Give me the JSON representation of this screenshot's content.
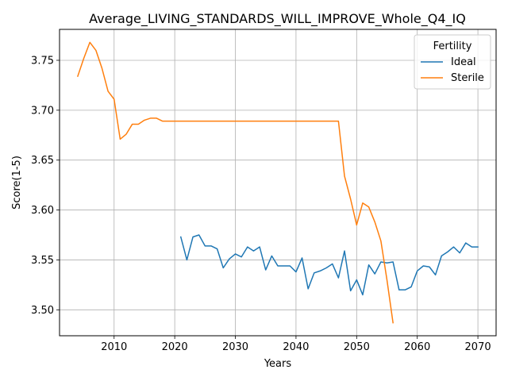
{
  "chart_data": {
    "type": "line",
    "title": "Average_LIVING_STANDARDS_WILL_IMPROVE_Whole_Q4_IQ",
    "xlabel": "Years",
    "ylabel": "Score(1-5)",
    "xlim": [
      2001,
      2073
    ],
    "ylim": [
      3.474,
      3.781
    ],
    "xticks": [
      2010,
      2020,
      2030,
      2040,
      2050,
      2060,
      2070
    ],
    "yticks": [
      3.5,
      3.55,
      3.6,
      3.65,
      3.7,
      3.75
    ],
    "xtick_labels": [
      "2010",
      "2020",
      "2030",
      "2040",
      "2050",
      "2060",
      "2070"
    ],
    "ytick_labels": [
      "3.50",
      "3.55",
      "3.60",
      "3.65",
      "3.70",
      "3.75"
    ],
    "grid": true,
    "legend": {
      "title": "Fertility",
      "placement": "top-right"
    },
    "series": [
      {
        "name": "Ideal",
        "color": "#1f77b4",
        "x": [
          2021,
          2022,
          2023,
          2024,
          2025,
          2026,
          2027,
          2028,
          2029,
          2030,
          2031,
          2032,
          2033,
          2034,
          2035,
          2036,
          2037,
          2038,
          2039,
          2040,
          2041,
          2042,
          2043,
          2044,
          2045,
          2046,
          2047,
          2048,
          2049,
          2050,
          2051,
          2052,
          2053,
          2054,
          2055,
          2056,
          2057,
          2058,
          2059,
          2060,
          2061,
          2062,
          2063,
          2064,
          2065,
          2066,
          2067,
          2068,
          2069,
          2070
        ],
        "y": [
          3.573,
          3.55,
          3.573,
          3.575,
          3.564,
          3.564,
          3.561,
          3.542,
          3.551,
          3.556,
          3.553,
          3.563,
          3.559,
          3.563,
          3.54,
          3.554,
          3.544,
          3.544,
          3.544,
          3.538,
          3.552,
          3.521,
          3.537,
          3.539,
          3.542,
          3.546,
          3.532,
          3.559,
          3.519,
          3.53,
          3.515,
          3.545,
          3.536,
          3.548,
          3.547,
          3.548,
          3.52,
          3.52,
          3.523,
          3.539,
          3.544,
          3.543,
          3.535,
          3.554,
          3.558,
          3.563,
          3.557,
          3.567,
          3.563,
          3.563
        ]
      },
      {
        "name": "Sterile",
        "color": "#ff7f0e",
        "x": [
          2004,
          2005,
          2006,
          2007,
          2008,
          2009,
          2010,
          2011,
          2012,
          2013,
          2014,
          2015,
          2016,
          2017,
          2018,
          2019,
          2020,
          2021,
          2022,
          2023,
          2024,
          2025,
          2026,
          2027,
          2028,
          2029,
          2030,
          2031,
          2032,
          2033,
          2034,
          2035,
          2036,
          2037,
          2038,
          2039,
          2040,
          2041,
          2042,
          2043,
          2044,
          2045,
          2046,
          2047,
          2048,
          2049,
          2050,
          2051,
          2052,
          2053,
          2054,
          2055,
          2056
        ],
        "y": [
          3.734,
          3.752,
          3.768,
          3.76,
          3.742,
          3.719,
          3.711,
          3.671,
          3.676,
          3.686,
          3.686,
          3.69,
          3.692,
          3.692,
          3.689,
          3.689,
          3.689,
          3.689,
          3.689,
          3.689,
          3.689,
          3.689,
          3.689,
          3.689,
          3.689,
          3.689,
          3.689,
          3.689,
          3.689,
          3.689,
          3.689,
          3.689,
          3.689,
          3.689,
          3.689,
          3.689,
          3.689,
          3.689,
          3.689,
          3.689,
          3.689,
          3.689,
          3.689,
          3.689,
          3.634,
          3.611,
          3.585,
          3.607,
          3.603,
          3.588,
          3.569,
          3.53,
          3.487
        ]
      }
    ]
  }
}
